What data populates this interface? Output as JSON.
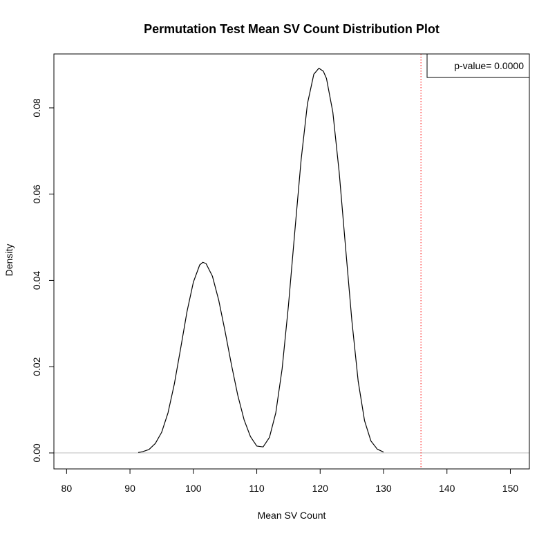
{
  "chart_data": {
    "type": "line",
    "title": "Permutation Test Mean SV Count Distribution Plot",
    "xlabel": "Mean SV Count",
    "ylabel": "Density",
    "xlim": [
      78,
      153
    ],
    "ylim": [
      -0.0037,
      0.0925
    ],
    "x_ticks": [
      80,
      90,
      100,
      110,
      120,
      130,
      140,
      150
    ],
    "y_ticks": [
      0.0,
      0.02,
      0.04,
      0.06,
      0.08
    ],
    "y_tick_labels": [
      "0.00",
      "0.02",
      "0.04",
      "0.06",
      "0.08"
    ],
    "grid": false,
    "baseline": {
      "y": 0,
      "color": "#bebebe"
    },
    "series": [
      {
        "color": "#000000",
        "x": [
          91.3,
          92.0,
          93.0,
          94.0,
          95.0,
          96.0,
          97.0,
          98.0,
          99.0,
          100.0,
          101.0,
          101.5,
          102.0,
          103.0,
          104.0,
          105.0,
          106.0,
          107.0,
          108.0,
          109.0,
          110.0,
          111.0,
          112.0,
          113.0,
          114.0,
          115.0,
          116.0,
          117.0,
          118.0,
          119.0,
          119.8,
          120.5,
          121.0,
          122.0,
          123.0,
          124.0,
          125.0,
          126.0,
          127.0,
          128.0,
          129.0,
          130.0
        ],
        "y": [
          0.0001,
          0.0003,
          0.0008,
          0.0022,
          0.0048,
          0.0093,
          0.016,
          0.0243,
          0.0328,
          0.0396,
          0.0436,
          0.0442,
          0.0439,
          0.041,
          0.0354,
          0.0282,
          0.0205,
          0.0134,
          0.0077,
          0.0038,
          0.0016,
          0.0014,
          0.0036,
          0.0093,
          0.0195,
          0.0342,
          0.0513,
          0.068,
          0.081,
          0.0878,
          0.0892,
          0.0885,
          0.0868,
          0.079,
          0.0651,
          0.0478,
          0.0307,
          0.0166,
          0.0075,
          0.0028,
          0.0009,
          0.0002
        ]
      }
    ],
    "vline": {
      "x": 135.9,
      "color": "#ff0000",
      "style": "dotted"
    },
    "legend": {
      "position": "top-right",
      "text": "p-value= 0.0000"
    }
  }
}
